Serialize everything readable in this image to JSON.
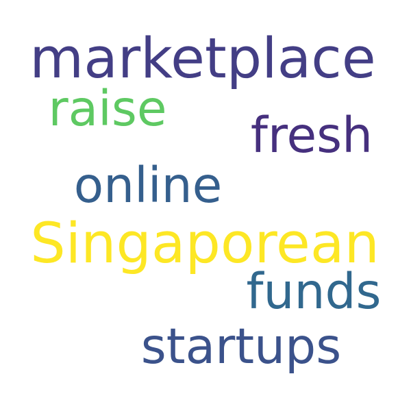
{
  "words": [
    {
      "text": "marketplace",
      "color": "#433e85"
    },
    {
      "text": "raise",
      "color": "#5ec962"
    },
    {
      "text": "fresh",
      "color": "#46307e"
    },
    {
      "text": "online",
      "color": "#355f8d"
    },
    {
      "text": "Singaporean",
      "color": "#fde725"
    },
    {
      "text": "funds",
      "color": "#31688e"
    },
    {
      "text": "startups",
      "color": "#3b528b"
    }
  ]
}
